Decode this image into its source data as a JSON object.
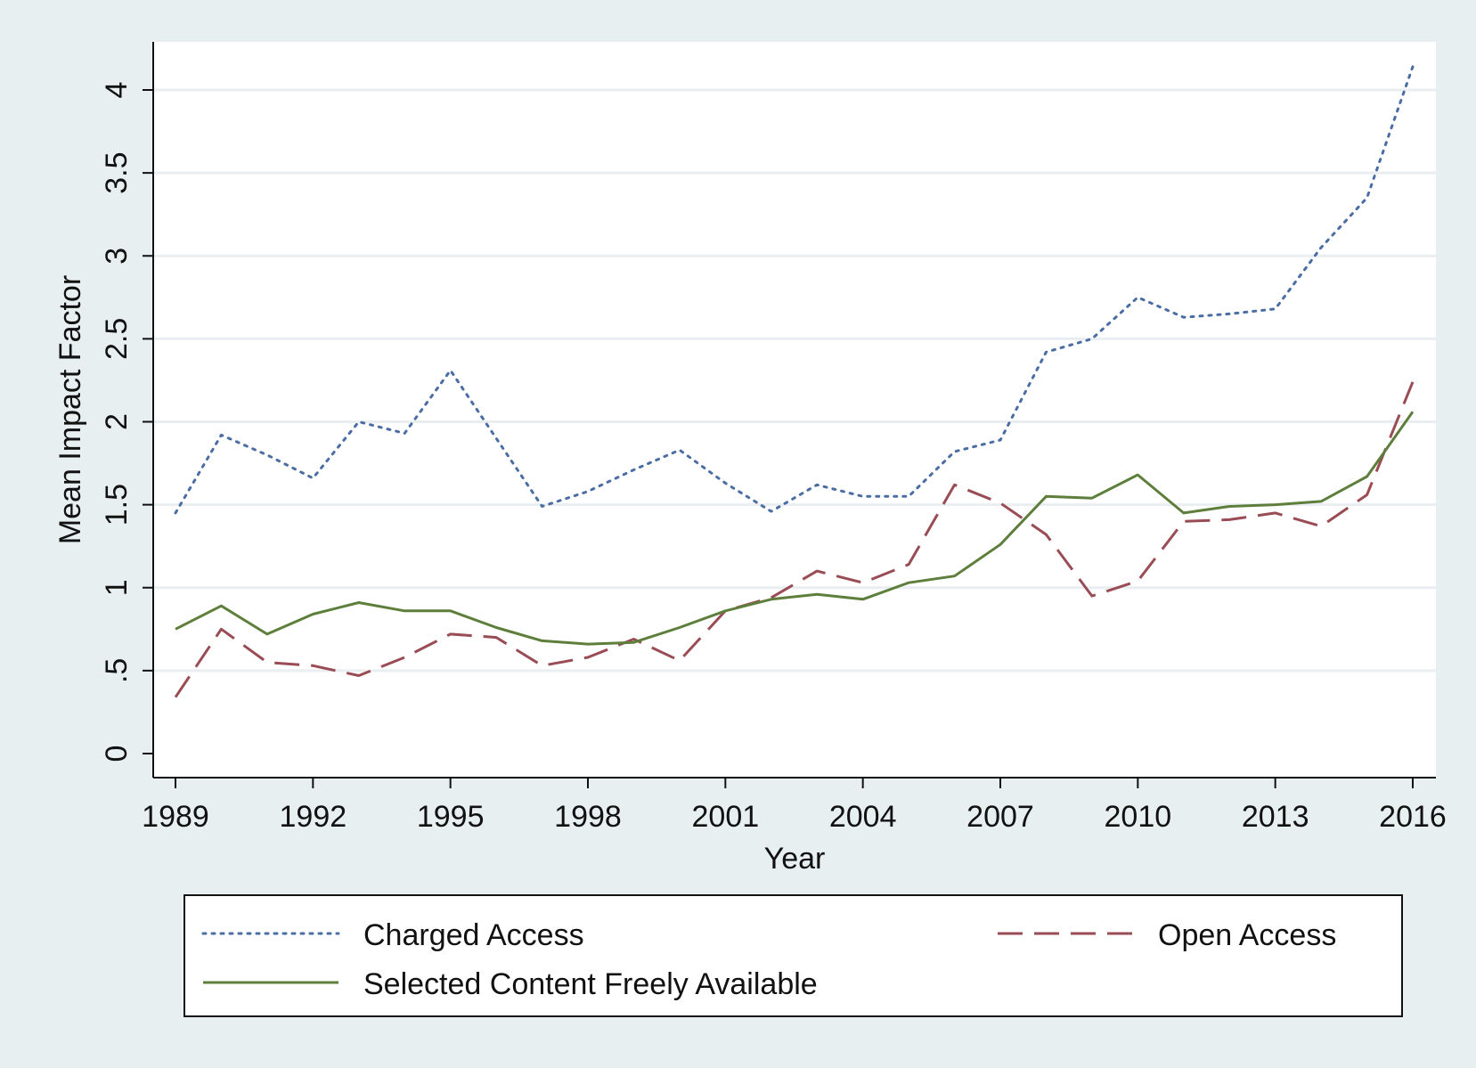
{
  "chart_data": {
    "type": "line",
    "xlabel": "Year",
    "ylabel": "Mean Impact Factor",
    "xlim": [
      1989,
      2016
    ],
    "ylim": [
      0,
      4.2
    ],
    "x_ticks": [
      1989,
      1992,
      1995,
      1998,
      2001,
      2004,
      2007,
      2010,
      2013,
      2016
    ],
    "y_ticks": [
      0,
      0.5,
      1,
      1.5,
      2,
      2.5,
      3,
      3.5,
      4
    ],
    "y_tick_labels": [
      "0",
      ".5",
      "1",
      "1.5",
      "2",
      "2.5",
      "3",
      "3.5",
      "4"
    ],
    "grid": "horizontal",
    "legend_position": "bottom",
    "x": [
      1989,
      1990,
      1991,
      1992,
      1993,
      1994,
      1995,
      1996,
      1997,
      1998,
      1999,
      2000,
      2001,
      2002,
      2003,
      2004,
      2005,
      2006,
      2007,
      2008,
      2009,
      2010,
      2011,
      2012,
      2013,
      2014,
      2015,
      2016
    ],
    "series": [
      {
        "name": "Charged Access",
        "style": "dotted",
        "color": "#4a6ea3",
        "values": [
          1.45,
          1.92,
          1.8,
          1.66,
          2.0,
          1.93,
          2.31,
          1.9,
          1.49,
          1.58,
          1.71,
          1.83,
          1.63,
          1.46,
          1.62,
          1.55,
          1.55,
          1.82,
          1.89,
          2.42,
          2.5,
          2.75,
          2.63,
          2.65,
          2.68,
          3.05,
          3.35,
          4.14
        ]
      },
      {
        "name": "Open Access",
        "style": "dashed",
        "color": "#9a4c55",
        "values": [
          0.34,
          0.75,
          0.55,
          0.53,
          0.47,
          0.58,
          0.72,
          0.7,
          0.53,
          0.58,
          0.69,
          0.56,
          0.86,
          0.94,
          1.1,
          1.03,
          1.14,
          1.62,
          1.51,
          1.32,
          0.95,
          1.04,
          1.4,
          1.41,
          1.45,
          1.37,
          1.56,
          2.24
        ]
      },
      {
        "name": "Selected Content Freely Available",
        "style": "solid",
        "color": "#5e7f3c",
        "values": [
          0.75,
          0.89,
          0.72,
          0.84,
          0.91,
          0.86,
          0.86,
          0.76,
          0.68,
          0.66,
          0.67,
          0.76,
          0.86,
          0.93,
          0.96,
          0.93,
          1.03,
          1.07,
          1.26,
          1.55,
          1.54,
          1.68,
          1.45,
          1.49,
          1.5,
          1.52,
          1.67,
          2.06
        ]
      }
    ]
  }
}
